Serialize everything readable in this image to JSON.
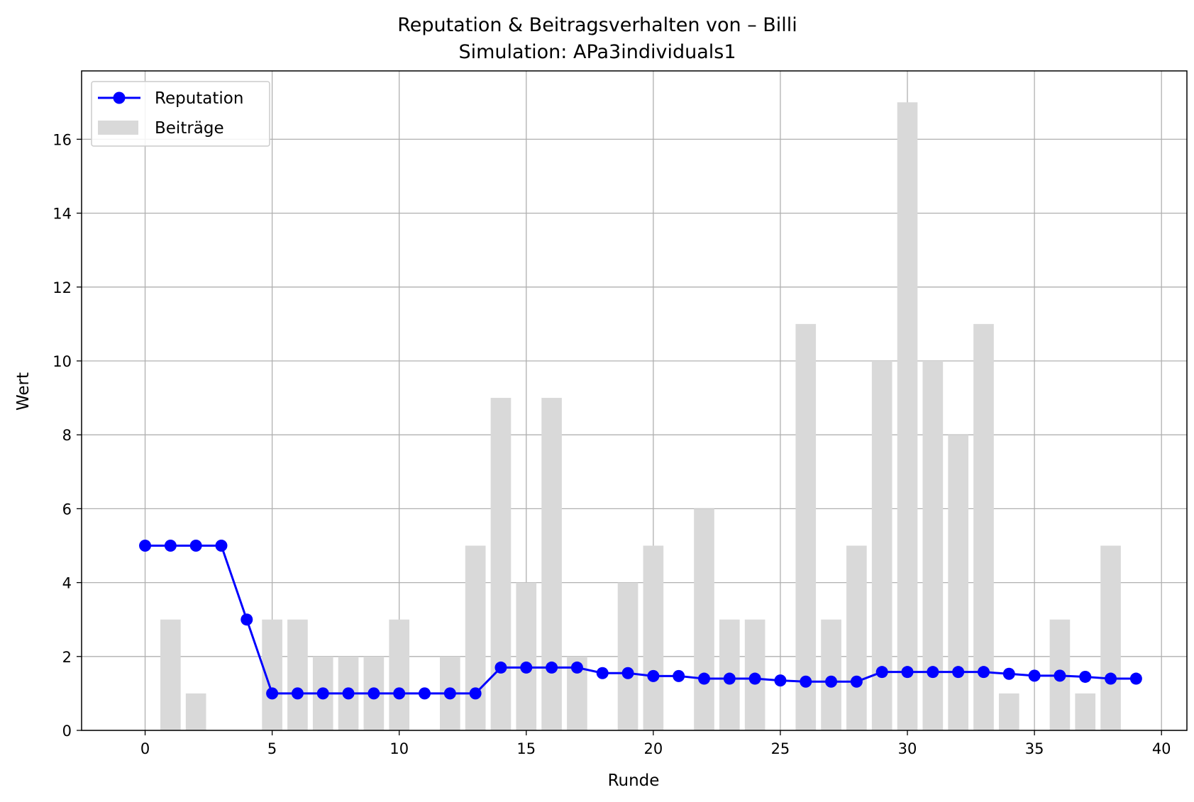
{
  "chart_data": {
    "type": "bar+line",
    "title": "Reputation & Beitragsverhalten von – Billi",
    "subtitle": "Simulation: APa3individuals1",
    "xlabel": "Runde",
    "ylabel": "Wert",
    "xlim": [
      -2.5,
      41
    ],
    "ylim": [
      0,
      17.85
    ],
    "xticks": [
      0,
      5,
      10,
      15,
      20,
      25,
      30,
      35,
      40
    ],
    "yticks": [
      0,
      2,
      4,
      6,
      8,
      10,
      12,
      14,
      16
    ],
    "grid": true,
    "legend_position": "top-left",
    "colors": {
      "line": "#0000ff",
      "bars": "#d9d9d9",
      "grid": "#b0b0b0"
    },
    "x": [
      0,
      1,
      2,
      3,
      4,
      5,
      6,
      7,
      8,
      9,
      10,
      11,
      12,
      13,
      14,
      15,
      16,
      17,
      18,
      19,
      20,
      21,
      22,
      23,
      24,
      25,
      26,
      27,
      28,
      29,
      30,
      31,
      32,
      33,
      34,
      35,
      36,
      37,
      38,
      39
    ],
    "series": [
      {
        "name": "Reputation",
        "kind": "line",
        "values": [
          5,
          5,
          5,
          5,
          3,
          1,
          1,
          1,
          1,
          1,
          1,
          1,
          1,
          1,
          1.7,
          1.7,
          1.7,
          1.7,
          1.55,
          1.55,
          1.47,
          1.47,
          1.4,
          1.4,
          1.4,
          1.35,
          1.32,
          1.32,
          1.32,
          1.58,
          1.58,
          1.58,
          1.58,
          1.58,
          1.53,
          1.48,
          1.48,
          1.45,
          1.4,
          1.4
        ]
      },
      {
        "name": "Beiträge",
        "kind": "bar",
        "values": [
          0,
          3,
          1,
          0,
          0,
          3,
          3,
          2,
          2,
          2,
          3,
          0,
          2,
          5,
          9,
          4,
          9,
          2,
          0,
          4,
          5,
          0,
          6,
          3,
          3,
          0,
          11,
          3,
          5,
          10,
          17,
          10,
          8,
          11,
          1,
          0,
          3,
          1,
          5,
          0
        ]
      }
    ]
  }
}
